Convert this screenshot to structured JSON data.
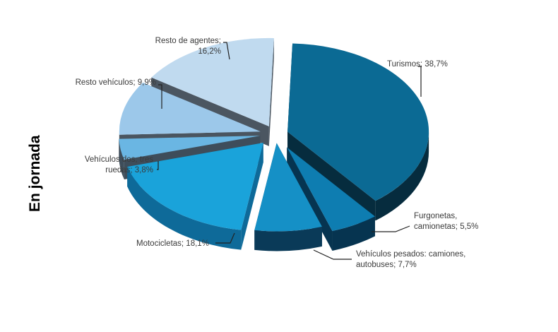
{
  "side_label": "En jornada",
  "chart_data": {
    "type": "pie",
    "style": "3d-exploded",
    "title": "",
    "slices": [
      {
        "key": "turismos",
        "value": 38.7,
        "label_lines": [
          "Turismos; 38,7%"
        ],
        "top": "#0b6a94",
        "side": "#062c3e",
        "explode": 18
      },
      {
        "key": "furgonetas",
        "value": 5.5,
        "label_lines": [
          "Furgonetas,",
          "camionetas; 5,5%"
        ],
        "top": "#0e7db1",
        "side": "#063450",
        "explode": 34
      },
      {
        "key": "pesados",
        "value": 7.7,
        "label_lines": [
          "Vehículos pesados: camiones,",
          "autobuses; 7,7%"
        ],
        "top": "#1590c6",
        "side": "#0a3a58",
        "explode": 20
      },
      {
        "key": "motocicletas",
        "value": 18.1,
        "label_lines": [
          "Motocicletas; 18,1%"
        ],
        "top": "#1aa3da",
        "side": "#0e6a99",
        "explode": 26
      },
      {
        "key": "dos_tres",
        "value": 3.8,
        "label_lines": [
          "Vehículos dos, tres",
          "ruedas; 3,8%"
        ],
        "top": "#6ab6e3",
        "side": "#3e4d5a",
        "explode": 22
      },
      {
        "key": "resto_vehiculos",
        "value": 9.9,
        "label_lines": [
          "Resto vehículos; 9,9%"
        ],
        "top": "#9cc8ea",
        "side": "#4a5560",
        "explode": 22
      },
      {
        "key": "resto_agentes",
        "value": 16.2,
        "label_lines": [
          "Resto de agentes;",
          "16,2%"
        ],
        "top": "#c0daef",
        "side": "#4b5661",
        "explode": 20
      }
    ]
  }
}
